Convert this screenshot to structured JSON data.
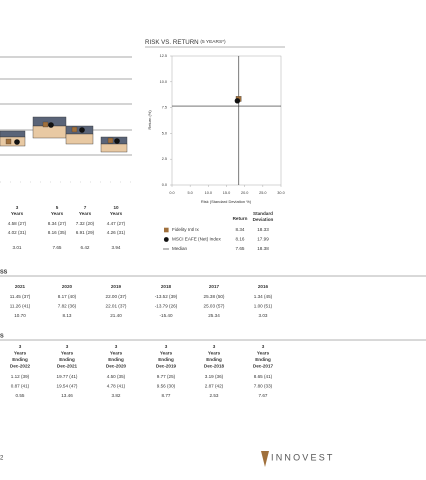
{
  "chart_data": {
    "type": "scatter",
    "title": "RISK VS. RETURN",
    "title_note": "(5 YEARS*)",
    "xlabel": "Risk (Standard Deviation %)",
    "ylabel": "Return (%)",
    "xlim": [
      0,
      30
    ],
    "ylim": [
      0,
      12.5
    ],
    "xticks": [
      {
        "value": 0,
        "label": "0.0"
      },
      {
        "value": 5,
        "label": "5.0"
      },
      {
        "value": 10,
        "label": "10.0"
      },
      {
        "value": 15,
        "label": "15.0"
      },
      {
        "value": 20,
        "label": "20.0"
      },
      {
        "value": 25,
        "label": "25.0"
      },
      {
        "value": 30,
        "label": "30.0"
      }
    ],
    "yticks": [
      {
        "value": 0,
        "label": "0.0"
      },
      {
        "value": 2.5,
        "label": "2.5"
      },
      {
        "value": 5,
        "label": "5.0"
      },
      {
        "value": 7.5,
        "label": "7.5"
      },
      {
        "value": 10,
        "label": "10.0"
      },
      {
        "value": 12.5,
        "label": "12.5"
      }
    ],
    "series": [
      {
        "name": "Fidelity Intl Ix",
        "color": "#a0703c",
        "marker": "square",
        "x": [
          18.33
        ],
        "values": [
          8.34
        ]
      },
      {
        "name": "MSCI EAFE (Net) Index",
        "color": "#111111",
        "marker": "circle",
        "x": [
          17.99
        ],
        "values": [
          8.16
        ]
      }
    ],
    "median": {
      "name": "Median",
      "x": 18.38,
      "y": 7.65,
      "color": "#222222"
    },
    "legend_headers": [
      "Return",
      "Standard Deviation"
    ]
  },
  "left_table": {
    "columns": [
      [
        "3",
        "Years"
      ],
      [
        "5",
        "Years"
      ],
      [
        "7",
        "Years"
      ],
      [
        "10",
        "Years"
      ]
    ],
    "rows": [
      [
        "4.58 (27)",
        "8.34 (27)",
        "7.32 (20)",
        "4.47 (27)"
      ],
      [
        "4.02 (31)",
        "8.16 (35)",
        "6.91 (29)",
        "4.26 (31)"
      ],
      [
        "3.01",
        "7.65",
        "6.42",
        "3.94"
      ]
    ]
  },
  "calendar_table": {
    "header": "SS",
    "columns": [
      "2021",
      "2020",
      "2019",
      "2018",
      "2017",
      "2016"
    ],
    "rows": [
      [
        "11.45 (37)",
        "8.17 (40)",
        "22.00 (37)",
        "-13.52 (39)",
        "25.38 (50)",
        "1.34 (45)"
      ],
      [
        "11.26 (41)",
        "7.82 (36)",
        "22.01 (37)",
        "-13.79 (26)",
        "25.03 (57)",
        "1.00 (51)"
      ],
      [
        "10.70",
        "8.13",
        "21.40",
        "-15.40",
        "25.34",
        "3.03"
      ]
    ]
  },
  "trailing_table": {
    "header": "S",
    "columns": [
      [
        "3",
        "Years",
        "Ending",
        "Dec-2022"
      ],
      [
        "3",
        "Years",
        "Ending",
        "Dec-2021"
      ],
      [
        "3",
        "Years",
        "Ending",
        "Dec-2020"
      ],
      [
        "3",
        "Years",
        "Ending",
        "Dec-2019"
      ],
      [
        "3",
        "Years",
        "Ending",
        "Dec-2018"
      ],
      [
        "3",
        "Years",
        "Ending",
        "Dec-2017"
      ]
    ],
    "rows": [
      [
        "1.12 (39)",
        "19.77 (41)",
        "4.50 (35)",
        "9.77 (25)",
        "3.19 (36)",
        "8.65 (41)"
      ],
      [
        "0.87 (41)",
        "19.54 (47)",
        "4.78 (41)",
        "9.56 (30)",
        "2.87 (42)",
        "7.80 (33)"
      ],
      [
        "0.55",
        "13.46",
        "3.82",
        "8.77",
        "2.53",
        "7.67"
      ]
    ]
  },
  "footer": {
    "page": "2",
    "logo": "INNOVEST"
  }
}
